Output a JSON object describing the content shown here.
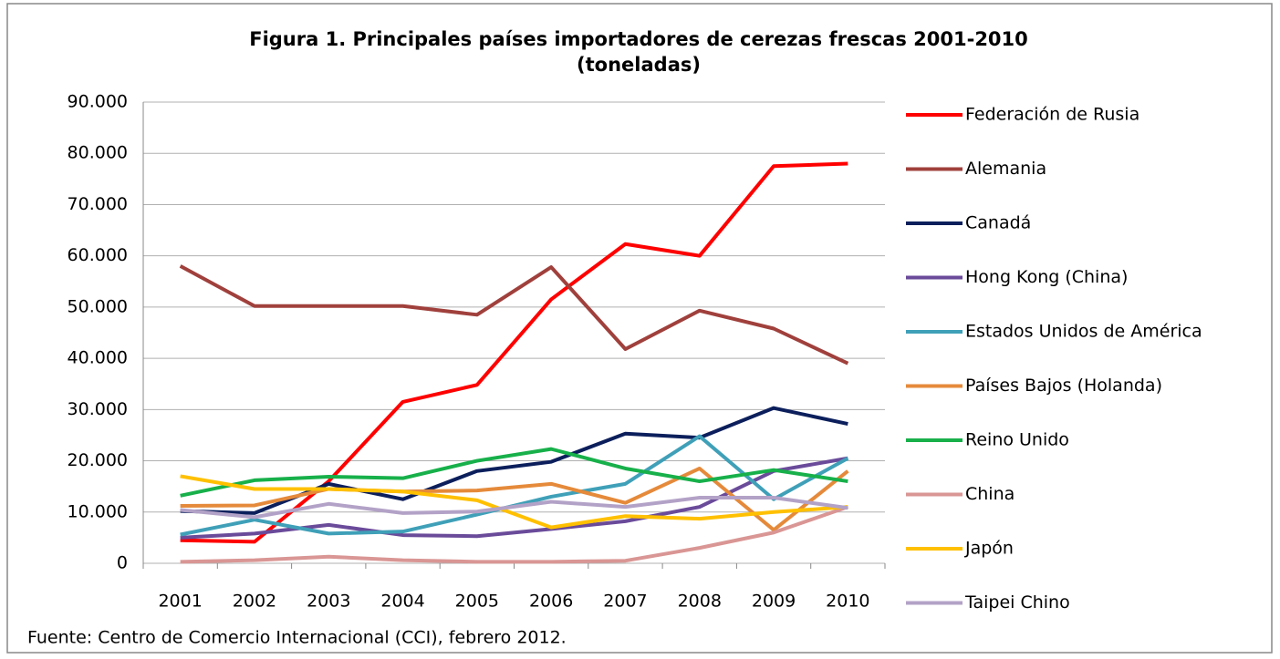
{
  "chart_data": {
    "type": "line",
    "title": "Figura 1. Principales países importadores de cerezas frescas 2001-2010",
    "subtitle": "(toneladas)",
    "source": "Fuente: Centro de Comercio Internacional (CCI), febrero 2012.",
    "categories": [
      "2001",
      "2002",
      "2003",
      "2004",
      "2005",
      "2006",
      "2007",
      "2008",
      "2009",
      "2010"
    ],
    "ylim": [
      0,
      90000
    ],
    "yticks": [
      0,
      {
        "value": 10000,
        "label": "10.000"
      },
      {
        "value": 20000,
        "label": "20.000"
      },
      {
        "value": 30000,
        "label": "30.000"
      },
      {
        "value": 40000,
        "label": "40.000"
      },
      {
        "value": 50000,
        "label": "50.000"
      },
      {
        "value": 60000,
        "label": "60.000"
      },
      {
        "value": 70000,
        "label": "70.000"
      },
      {
        "value": 80000,
        "label": "80.000"
      },
      {
        "value": 90000,
        "label": "90.000"
      }
    ],
    "grid": true,
    "legend": "right",
    "series": [
      {
        "name": "Federación de Rusia",
        "color": "#ff0000",
        "values": [
          4500,
          4200,
          16000,
          31500,
          34800,
          51500,
          62300,
          60000,
          77500,
          78000
        ]
      },
      {
        "name": "Alemania",
        "color": "#a0403c",
        "values": [
          58000,
          50200,
          50200,
          50200,
          48500,
          57800,
          41800,
          49300,
          45800,
          39000
        ]
      },
      {
        "name": "Canadá",
        "color": "#0c1f5c",
        "values": [
          10200,
          9800,
          15500,
          12500,
          18000,
          19800,
          25300,
          24500,
          30300,
          27200
        ]
      },
      {
        "name": "Hong Kong (China)",
        "color": "#6a4b9a",
        "values": [
          5000,
          5800,
          7500,
          5500,
          5300,
          6700,
          8200,
          11000,
          18000,
          20500
        ]
      },
      {
        "name": "Estados Unidos de América",
        "color": "#3fa0b8",
        "values": [
          5600,
          8500,
          5800,
          6200,
          9500,
          13000,
          15500,
          24800,
          12500,
          20500
        ]
      },
      {
        "name": "Países Bajos (Holanda)",
        "color": "#e58a3a",
        "values": [
          11200,
          11300,
          14500,
          14000,
          14200,
          15500,
          11800,
          18500,
          6500,
          18000
        ]
      },
      {
        "name": "Reino Unido",
        "color": "#17b04a",
        "values": [
          13200,
          16200,
          16900,
          16600,
          20000,
          22300,
          18500,
          16000,
          18200,
          16000
        ]
      },
      {
        "name": "China",
        "color": "#d99694",
        "values": [
          300,
          600,
          1300,
          600,
          300,
          300,
          500,
          3000,
          6000,
          11000
        ]
      },
      {
        "name": "Japón",
        "color": "#ffc000",
        "values": [
          17000,
          14500,
          14500,
          14000,
          12300,
          7000,
          9200,
          8700,
          10000,
          11000
        ]
      },
      {
        "name": "Taipei Chino",
        "color": "#b3a2c7",
        "values": [
          10400,
          9000,
          11600,
          9800,
          10100,
          12000,
          11000,
          12800,
          12800,
          10800
        ]
      }
    ]
  }
}
